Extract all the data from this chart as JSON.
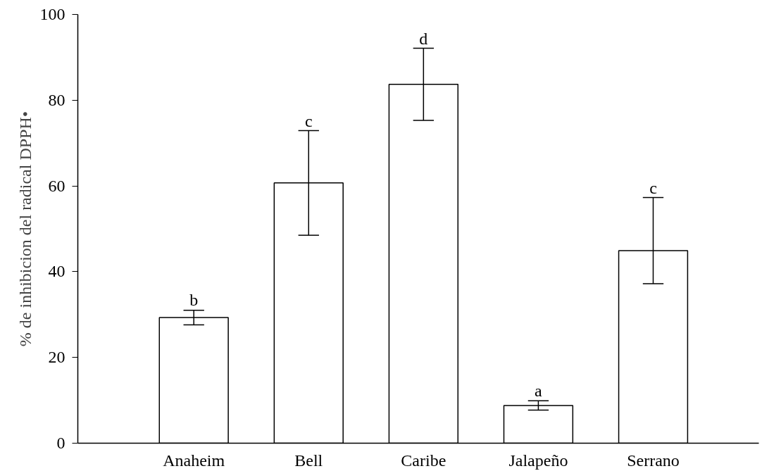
{
  "chart_data": {
    "type": "bar",
    "ylabel": "% de inhibicion del radical DPPH•",
    "categories": [
      "Anaheim",
      "Bell",
      "Caribe",
      "Jalapeño",
      "Serrano"
    ],
    "values": [
      29.3,
      60.7,
      83.7,
      8.8,
      44.9
    ],
    "errors": [
      1.7,
      12.2,
      8.4,
      1.1,
      [
        37.2,
        57.3
      ]
    ],
    "color": "#ffffff",
    "ylim": [
      0,
      100
    ],
    "yticks": [
      0,
      20,
      40,
      60,
      80,
      100
    ],
    "grid": false,
    "annotations": [
      {
        "text": "b",
        "x": "Anaheim",
        "y": 31.1
      },
      {
        "text": "c",
        "x": "Bell",
        "y": 72.9
      },
      {
        "text": "d",
        "x": "Caribe",
        "y": 92.1
      },
      {
        "text": "a",
        "x": "Jalapeño",
        "y": 9.9
      },
      {
        "text": "c",
        "x": "Serrano",
        "y": 57.3
      }
    ]
  }
}
